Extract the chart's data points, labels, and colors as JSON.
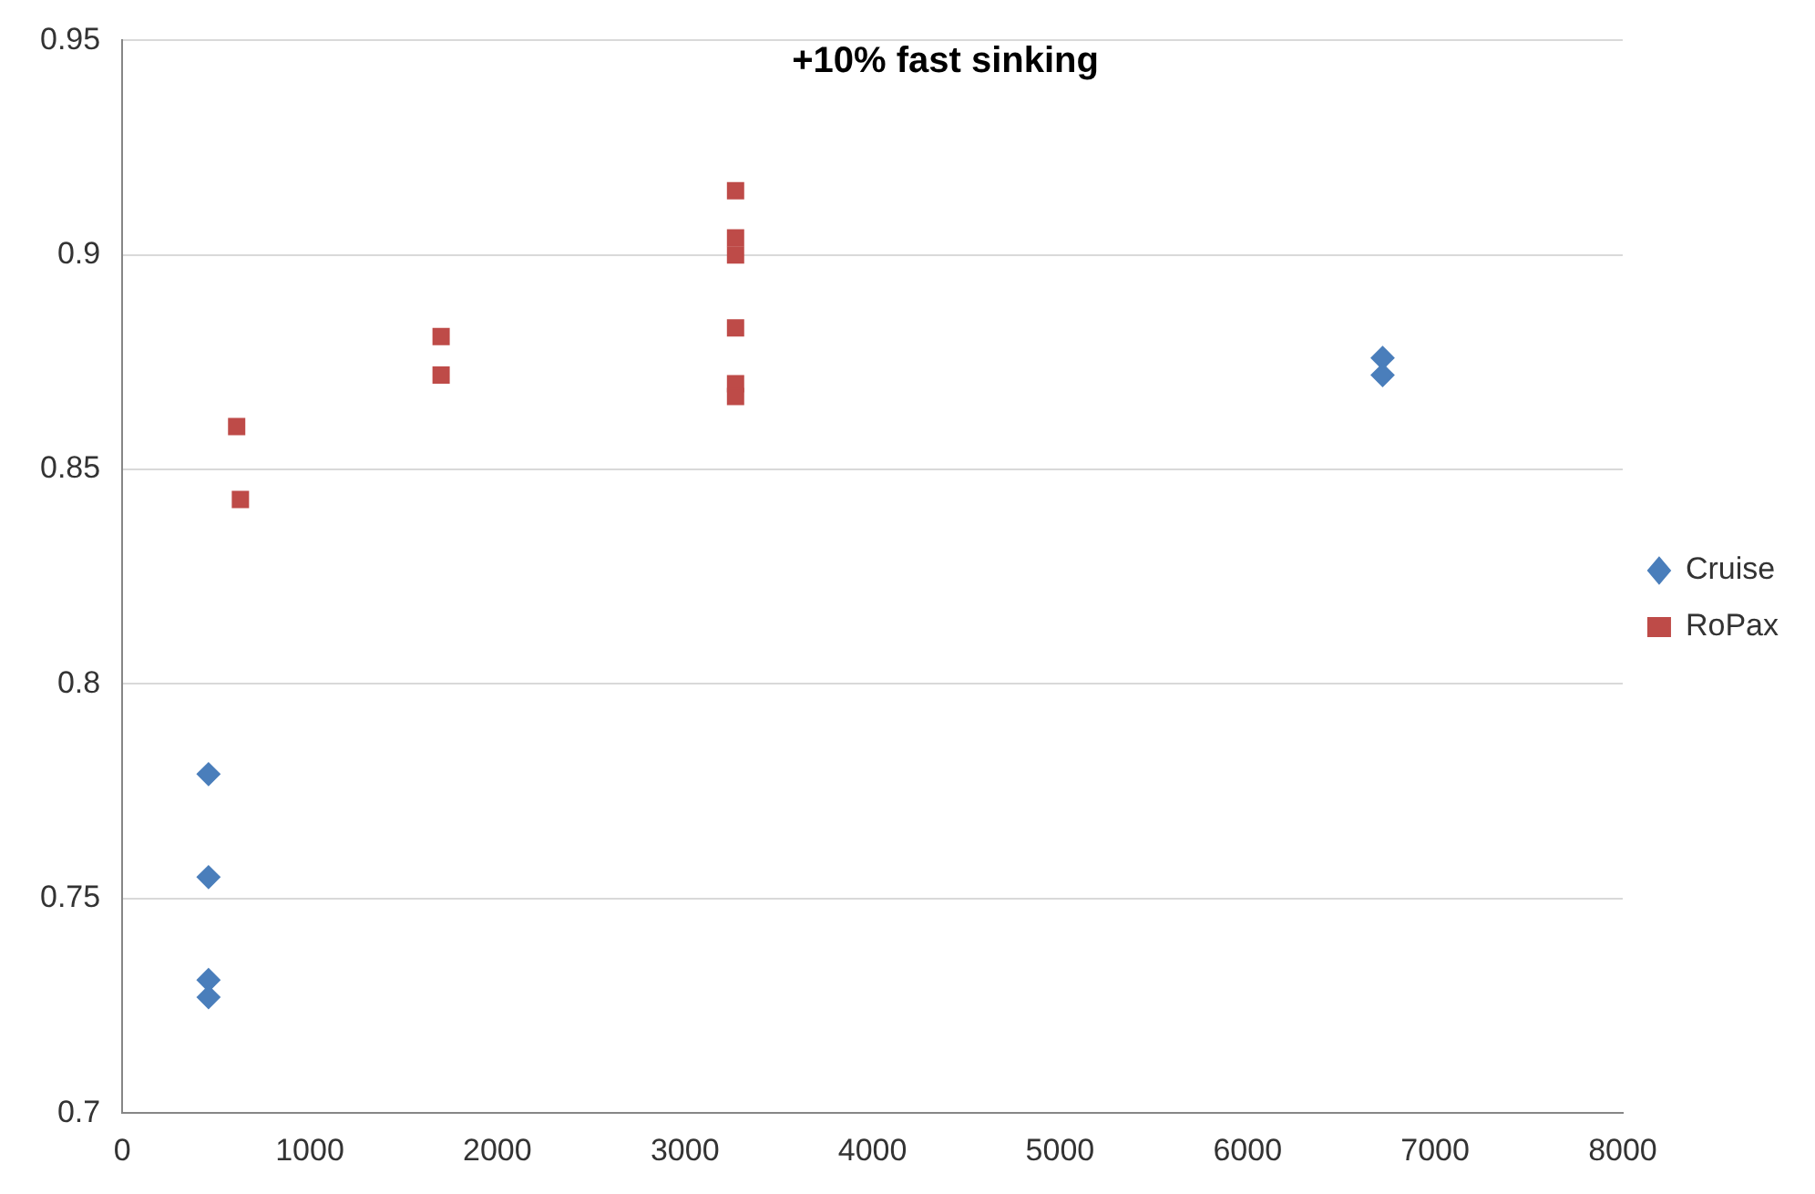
{
  "chart_data": {
    "type": "scatter",
    "title": "+10% fast sinking",
    "series": [
      {
        "name": "Cruise",
        "color": "#4a7ebb",
        "marker": "diamond",
        "x": [
          460,
          460,
          460,
          460,
          6720,
          6720
        ],
        "values": [
          0.779,
          0.755,
          0.731,
          0.727,
          0.876,
          0.872
        ]
      },
      {
        "name": "RoPax",
        "color": "#be4b48",
        "marker": "square",
        "x": [
          610,
          630,
          1700,
          1700,
          3270,
          3270,
          3270,
          3270,
          3270,
          3270
        ],
        "values": [
          0.86,
          0.843,
          0.881,
          0.872,
          0.915,
          0.904,
          0.9,
          0.883,
          0.87,
          0.867
        ]
      }
    ],
    "xlim": [
      0,
      8000
    ],
    "xticks": [
      0,
      1000,
      2000,
      3000,
      4000,
      5000,
      6000,
      7000,
      8000
    ],
    "ylim": [
      0.7,
      0.95
    ],
    "yticks": [
      0.7,
      0.75,
      0.8,
      0.85,
      0.9,
      0.95
    ],
    "grid": "y",
    "legend": "right"
  }
}
